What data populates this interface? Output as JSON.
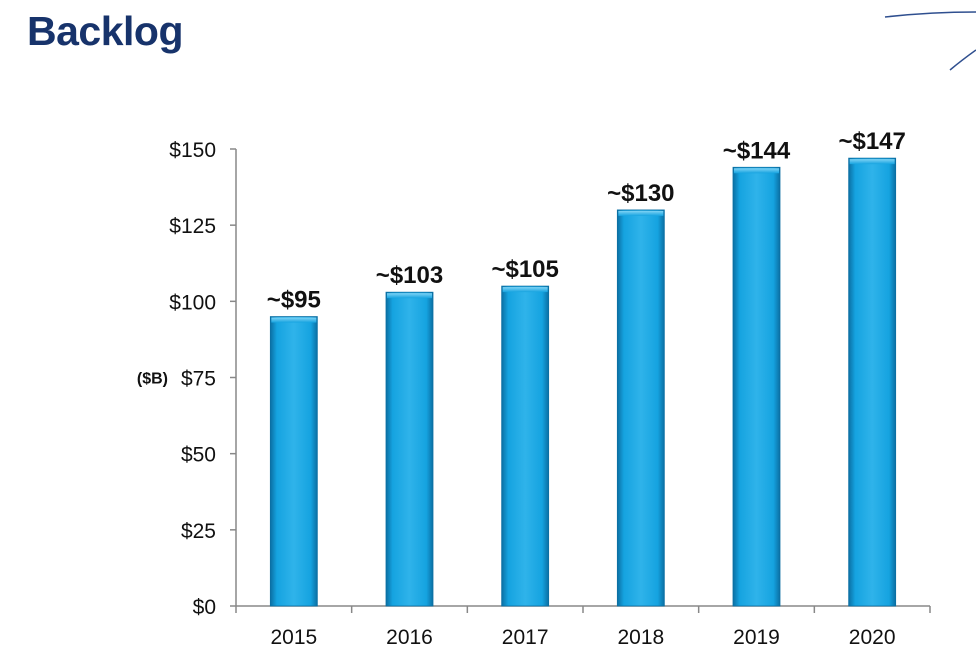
{
  "slide": {
    "title": "Backlog"
  },
  "colors": {
    "title": "#17336b",
    "bar": "#15a3e0",
    "bar_dark": "#0b6fa3",
    "bar_light": "#5cc5f0",
    "axis": "#888888",
    "accent_line": "#2f4f8f"
  },
  "chart_data": {
    "type": "bar",
    "title": "",
    "xlabel": "",
    "ylabel": "($B)",
    "categories": [
      "2015",
      "2016",
      "2017",
      "2018",
      "2019",
      "2020"
    ],
    "values": [
      95,
      103,
      105,
      130,
      144,
      147
    ],
    "data_labels": [
      "~$95",
      "~$103",
      "~$105",
      "~$130",
      "~$144",
      "~$147"
    ],
    "ylim": [
      0,
      150
    ],
    "y_ticks": [
      0,
      25,
      50,
      75,
      100,
      125,
      150
    ],
    "y_tick_labels": [
      "$0",
      "$25",
      "$50",
      "$75",
      "$100",
      "$125",
      "$150"
    ],
    "grid": false,
    "legend": "none"
  }
}
